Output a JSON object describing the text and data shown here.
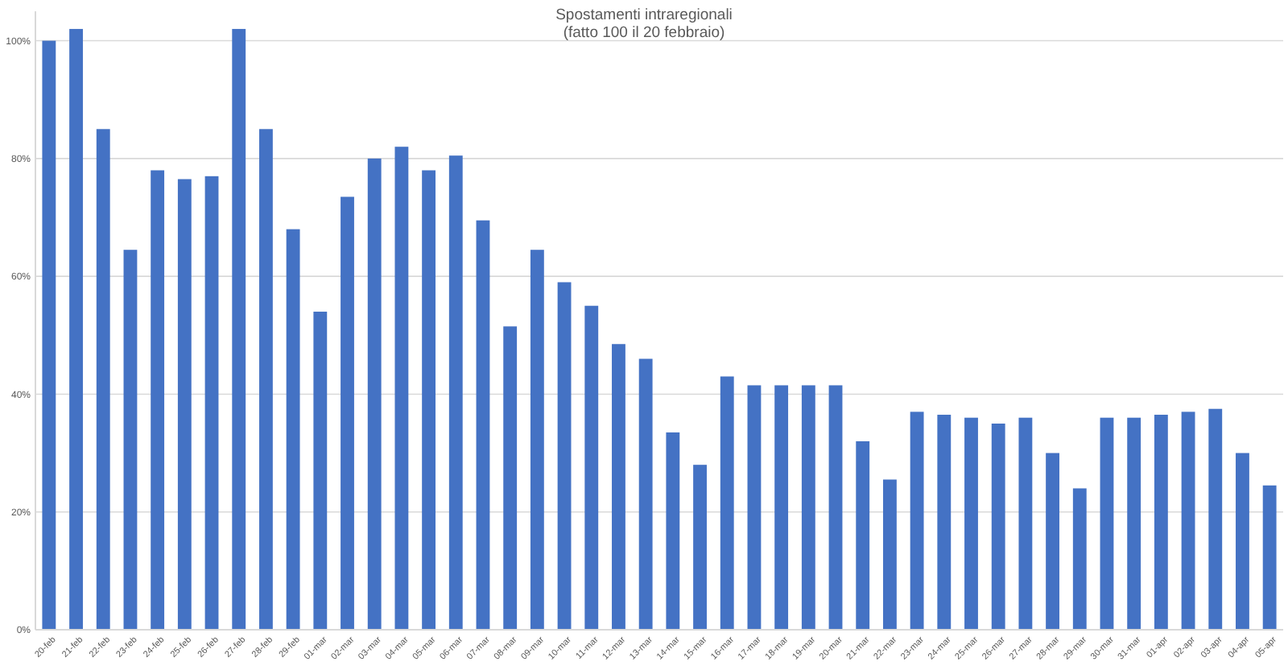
{
  "chart_data": {
    "type": "bar",
    "title": "Spostamenti intraregionali",
    "subtitle": "(fatto 100 il 20 febbraio)",
    "categories": [
      "20-feb",
      "21-feb",
      "22-feb",
      "23-feb",
      "24-feb",
      "25-feb",
      "26-feb",
      "27-feb",
      "28-feb",
      "29-feb",
      "01-mar",
      "02-mar",
      "03-mar",
      "04-mar",
      "05-mar",
      "06-mar",
      "07-mar",
      "08-mar",
      "09-mar",
      "10-mar",
      "11-mar",
      "12-mar",
      "13-mar",
      "14-mar",
      "15-mar",
      "16-mar",
      "17-mar",
      "18-mar",
      "19-mar",
      "20-mar",
      "21-mar",
      "22-mar",
      "23-mar",
      "24-mar",
      "25-mar",
      "26-mar",
      "27-mar",
      "28-mar",
      "29-mar",
      "30-mar",
      "31-mar",
      "01-apr",
      "02-apr",
      "03-apr",
      "04-apr",
      "05-apr"
    ],
    "values": [
      100,
      102,
      85,
      64.5,
      78,
      76.5,
      77,
      102,
      85,
      68,
      54,
      73.5,
      80,
      82,
      78,
      80.5,
      69.5,
      51.5,
      64.5,
      59,
      55,
      48.5,
      46,
      33.5,
      28,
      43,
      41.5,
      41.5,
      41.5,
      41.5,
      32,
      25.5,
      37,
      36.5,
      36,
      35,
      36,
      30,
      24,
      36,
      36,
      36.5,
      37,
      37.5,
      30,
      24.5
    ],
    "color": "#4472c4",
    "ylim": [
      0,
      105
    ],
    "yticks": [
      {
        "value": 0,
        "label": "0%"
      },
      {
        "value": 20,
        "label": "20%"
      },
      {
        "value": 40,
        "label": "40%"
      },
      {
        "value": 60,
        "label": "60%"
      },
      {
        "value": 80,
        "label": "80%"
      },
      {
        "value": 100,
        "label": "100%"
      }
    ],
    "grid": "y"
  }
}
